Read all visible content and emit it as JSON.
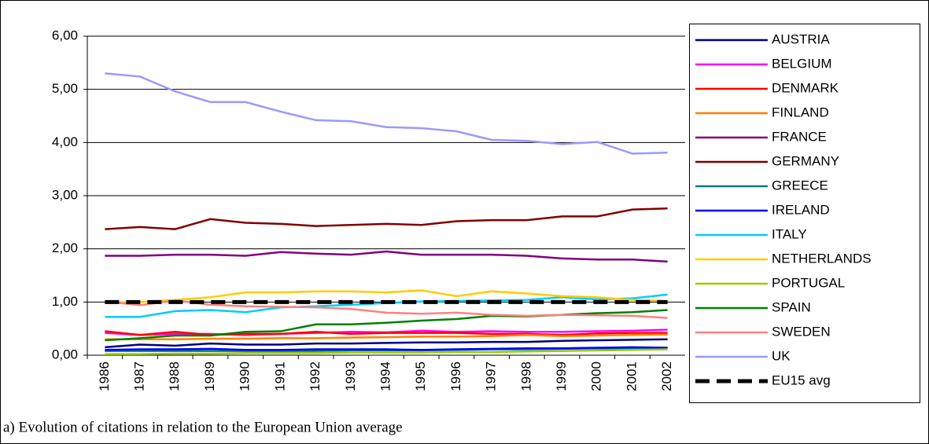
{
  "chart_data": {
    "type": "line",
    "caption": "a) Evolution of citations in relation to the European Union average",
    "categories": [
      "1986",
      "1987",
      "1988",
      "1989",
      "1990",
      "1991",
      "1992",
      "1993",
      "1994",
      "1995",
      "1996",
      "1997",
      "1998",
      "1999",
      "2000",
      "2001",
      "2002"
    ],
    "ylim": [
      0,
      6
    ],
    "yticks": [
      {
        "value": 0,
        "label": "0,00"
      },
      {
        "value": 1,
        "label": "1,00"
      },
      {
        "value": 2,
        "label": "2,00"
      },
      {
        "value": 3,
        "label": "3,00"
      },
      {
        "value": 4,
        "label": "4,00"
      },
      {
        "value": 5,
        "label": "5,00"
      },
      {
        "value": 6,
        "label": "6,00"
      }
    ],
    "grid": true,
    "legend": "right",
    "series": [
      {
        "name": "AUSTRIA",
        "color": "#000080",
        "values": [
          0.15,
          0.2,
          0.18,
          0.22,
          0.2,
          0.2,
          0.22,
          0.22,
          0.23,
          0.24,
          0.24,
          0.25,
          0.25,
          0.27,
          0.28,
          0.29,
          0.3
        ]
      },
      {
        "name": "BELGIUM",
        "color": "#ff00ff",
        "values": [
          0.42,
          0.38,
          0.4,
          0.4,
          0.38,
          0.4,
          0.42,
          0.44,
          0.43,
          0.46,
          0.44,
          0.45,
          0.44,
          0.44,
          0.45,
          0.46,
          0.48
        ]
      },
      {
        "name": "DENMARK",
        "color": "#ff0000",
        "values": [
          0.45,
          0.38,
          0.44,
          0.38,
          0.4,
          0.4,
          0.44,
          0.4,
          0.42,
          0.42,
          0.42,
          0.4,
          0.4,
          0.38,
          0.41,
          0.42,
          0.42
        ]
      },
      {
        "name": "FINLAND",
        "color": "#ff8000",
        "values": [
          0.3,
          0.3,
          0.3,
          0.31,
          0.31,
          0.32,
          0.32,
          0.33,
          0.34,
          0.35,
          0.35,
          0.36,
          0.38,
          0.36,
          0.37,
          0.38,
          0.39
        ]
      },
      {
        "name": "FRANCE",
        "color": "#800080",
        "values": [
          1.87,
          1.87,
          1.89,
          1.89,
          1.87,
          1.94,
          1.91,
          1.89,
          1.95,
          1.89,
          1.89,
          1.89,
          1.87,
          1.82,
          1.8,
          1.8,
          1.76
        ]
      },
      {
        "name": "GERMANY",
        "color": "#800000",
        "values": [
          2.37,
          2.41,
          2.37,
          2.56,
          2.49,
          2.47,
          2.43,
          2.45,
          2.47,
          2.45,
          2.52,
          2.54,
          2.54,
          2.61,
          2.61,
          2.74,
          2.76
        ]
      },
      {
        "name": "GREECE",
        "color": "#008080",
        "values": [
          0.08,
          0.08,
          0.08,
          0.08,
          0.08,
          0.08,
          0.08,
          0.09,
          0.09,
          0.09,
          0.1,
          0.11,
          0.11,
          0.12,
          0.13,
          0.13,
          0.13
        ]
      },
      {
        "name": "IRELAND",
        "color": "#0000ff",
        "values": [
          0.1,
          0.11,
          0.11,
          0.12,
          0.1,
          0.1,
          0.11,
          0.11,
          0.11,
          0.1,
          0.11,
          0.12,
          0.13,
          0.13,
          0.14,
          0.15,
          0.14
        ]
      },
      {
        "name": "ITALY",
        "color": "#00ccff",
        "values": [
          0.72,
          0.72,
          0.83,
          0.85,
          0.81,
          0.9,
          0.92,
          0.95,
          0.98,
          1.01,
          1.02,
          1.03,
          1.04,
          1.09,
          1.05,
          1.07,
          1.14
        ]
      },
      {
        "name": "NETHERLANDS",
        "color": "#ffcc00",
        "values": [
          0.99,
          1.0,
          1.04,
          1.09,
          1.18,
          1.18,
          1.2,
          1.2,
          1.18,
          1.22,
          1.11,
          1.2,
          1.16,
          1.11,
          1.09,
          1.04,
          1.02
        ]
      },
      {
        "name": "PORTUGAL",
        "color": "#99cc00",
        "values": [
          0.02,
          0.02,
          0.03,
          0.03,
          0.04,
          0.04,
          0.04,
          0.05,
          0.05,
          0.05,
          0.06,
          0.06,
          0.07,
          0.08,
          0.09,
          0.1,
          0.11
        ]
      },
      {
        "name": "SPAIN",
        "color": "#008000",
        "values": [
          0.28,
          0.32,
          0.37,
          0.37,
          0.44,
          0.45,
          0.58,
          0.58,
          0.61,
          0.65,
          0.68,
          0.74,
          0.73,
          0.76,
          0.79,
          0.81,
          0.85
        ]
      },
      {
        "name": "SWEDEN",
        "color": "#ff8080",
        "values": [
          1.01,
          0.94,
          1.03,
          0.95,
          0.92,
          0.91,
          0.9,
          0.87,
          0.8,
          0.78,
          0.8,
          0.76,
          0.74,
          0.76,
          0.75,
          0.74,
          0.7
        ]
      },
      {
        "name": "UK",
        "color": "#9999ff",
        "values": [
          5.3,
          5.24,
          4.96,
          4.76,
          4.76,
          4.58,
          4.42,
          4.4,
          4.29,
          4.27,
          4.21,
          4.05,
          4.03,
          3.97,
          4.01,
          3.79,
          3.81
        ]
      },
      {
        "name": "EU15 avg",
        "color": "#000000",
        "dashed": true,
        "values": [
          1,
          1,
          1,
          1,
          1,
          1,
          1,
          1,
          1,
          1,
          1,
          1,
          1,
          1,
          1,
          1,
          1
        ]
      }
    ]
  }
}
